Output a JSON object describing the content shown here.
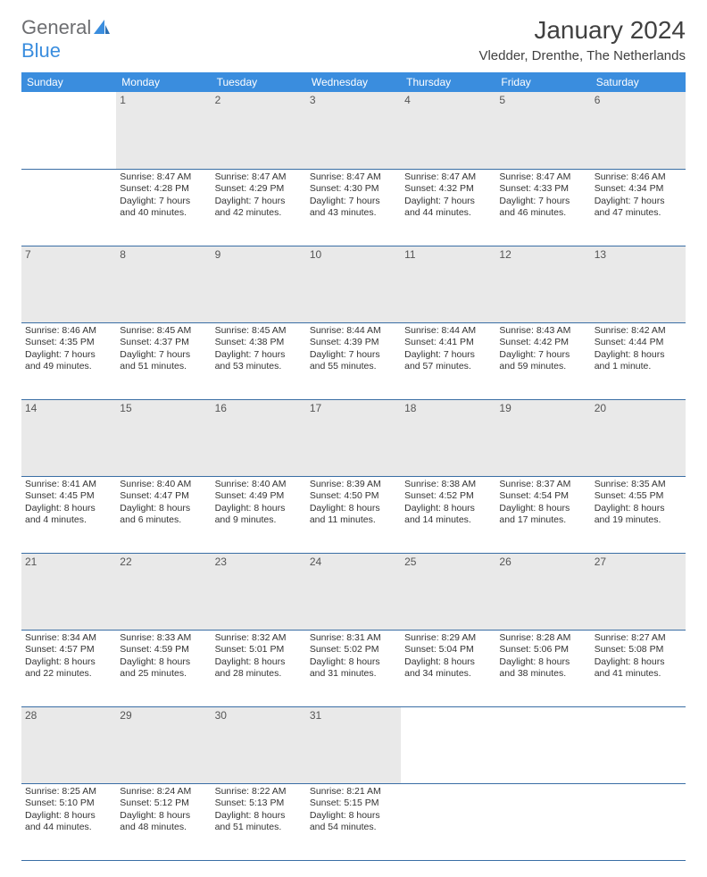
{
  "logo": {
    "word1": "General",
    "word2": "Blue"
  },
  "title": "January 2024",
  "location": "Vledder, Drenthe, The Netherlands",
  "colors": {
    "header_bg": "#3a8dde",
    "header_text": "#ffffff",
    "daynum_bg": "#e9e9e9",
    "row_border": "#3a6ea5",
    "text": "#333333",
    "logo_gray": "#6d6e71",
    "logo_blue": "#3a8dde"
  },
  "day_headers": [
    "Sunday",
    "Monday",
    "Tuesday",
    "Wednesday",
    "Thursday",
    "Friday",
    "Saturday"
  ],
  "weeks": [
    {
      "nums": [
        "",
        "1",
        "2",
        "3",
        "4",
        "5",
        "6"
      ],
      "cells": [
        null,
        {
          "sunrise": "8:47 AM",
          "sunset": "4:28 PM",
          "day_h": 7,
          "day_m": 40
        },
        {
          "sunrise": "8:47 AM",
          "sunset": "4:29 PM",
          "day_h": 7,
          "day_m": 42
        },
        {
          "sunrise": "8:47 AM",
          "sunset": "4:30 PM",
          "day_h": 7,
          "day_m": 43
        },
        {
          "sunrise": "8:47 AM",
          "sunset": "4:32 PM",
          "day_h": 7,
          "day_m": 44
        },
        {
          "sunrise": "8:47 AM",
          "sunset": "4:33 PM",
          "day_h": 7,
          "day_m": 46
        },
        {
          "sunrise": "8:46 AM",
          "sunset": "4:34 PM",
          "day_h": 7,
          "day_m": 47
        }
      ]
    },
    {
      "nums": [
        "7",
        "8",
        "9",
        "10",
        "11",
        "12",
        "13"
      ],
      "cells": [
        {
          "sunrise": "8:46 AM",
          "sunset": "4:35 PM",
          "day_h": 7,
          "day_m": 49
        },
        {
          "sunrise": "8:45 AM",
          "sunset": "4:37 PM",
          "day_h": 7,
          "day_m": 51
        },
        {
          "sunrise": "8:45 AM",
          "sunset": "4:38 PM",
          "day_h": 7,
          "day_m": 53
        },
        {
          "sunrise": "8:44 AM",
          "sunset": "4:39 PM",
          "day_h": 7,
          "day_m": 55
        },
        {
          "sunrise": "8:44 AM",
          "sunset": "4:41 PM",
          "day_h": 7,
          "day_m": 57
        },
        {
          "sunrise": "8:43 AM",
          "sunset": "4:42 PM",
          "day_h": 7,
          "day_m": 59
        },
        {
          "sunrise": "8:42 AM",
          "sunset": "4:44 PM",
          "day_h": 8,
          "day_m": 1
        }
      ]
    },
    {
      "nums": [
        "14",
        "15",
        "16",
        "17",
        "18",
        "19",
        "20"
      ],
      "cells": [
        {
          "sunrise": "8:41 AM",
          "sunset": "4:45 PM",
          "day_h": 8,
          "day_m": 4
        },
        {
          "sunrise": "8:40 AM",
          "sunset": "4:47 PM",
          "day_h": 8,
          "day_m": 6
        },
        {
          "sunrise": "8:40 AM",
          "sunset": "4:49 PM",
          "day_h": 8,
          "day_m": 9
        },
        {
          "sunrise": "8:39 AM",
          "sunset": "4:50 PM",
          "day_h": 8,
          "day_m": 11
        },
        {
          "sunrise": "8:38 AM",
          "sunset": "4:52 PM",
          "day_h": 8,
          "day_m": 14
        },
        {
          "sunrise": "8:37 AM",
          "sunset": "4:54 PM",
          "day_h": 8,
          "day_m": 17
        },
        {
          "sunrise": "8:35 AM",
          "sunset": "4:55 PM",
          "day_h": 8,
          "day_m": 19
        }
      ]
    },
    {
      "nums": [
        "21",
        "22",
        "23",
        "24",
        "25",
        "26",
        "27"
      ],
      "cells": [
        {
          "sunrise": "8:34 AM",
          "sunset": "4:57 PM",
          "day_h": 8,
          "day_m": 22
        },
        {
          "sunrise": "8:33 AM",
          "sunset": "4:59 PM",
          "day_h": 8,
          "day_m": 25
        },
        {
          "sunrise": "8:32 AM",
          "sunset": "5:01 PM",
          "day_h": 8,
          "day_m": 28
        },
        {
          "sunrise": "8:31 AM",
          "sunset": "5:02 PM",
          "day_h": 8,
          "day_m": 31
        },
        {
          "sunrise": "8:29 AM",
          "sunset": "5:04 PM",
          "day_h": 8,
          "day_m": 34
        },
        {
          "sunrise": "8:28 AM",
          "sunset": "5:06 PM",
          "day_h": 8,
          "day_m": 38
        },
        {
          "sunrise": "8:27 AM",
          "sunset": "5:08 PM",
          "day_h": 8,
          "day_m": 41
        }
      ]
    },
    {
      "nums": [
        "28",
        "29",
        "30",
        "31",
        "",
        "",
        ""
      ],
      "cells": [
        {
          "sunrise": "8:25 AM",
          "sunset": "5:10 PM",
          "day_h": 8,
          "day_m": 44
        },
        {
          "sunrise": "8:24 AM",
          "sunset": "5:12 PM",
          "day_h": 8,
          "day_m": 48
        },
        {
          "sunrise": "8:22 AM",
          "sunset": "5:13 PM",
          "day_h": 8,
          "day_m": 51
        },
        {
          "sunrise": "8:21 AM",
          "sunset": "5:15 PM",
          "day_h": 8,
          "day_m": 54
        },
        null,
        null,
        null
      ]
    }
  ],
  "labels": {
    "sunrise": "Sunrise:",
    "sunset": "Sunset:",
    "daylight": "Daylight:",
    "hours": "hours",
    "and": "and",
    "minutes": "minutes.",
    "minute": "minute."
  }
}
